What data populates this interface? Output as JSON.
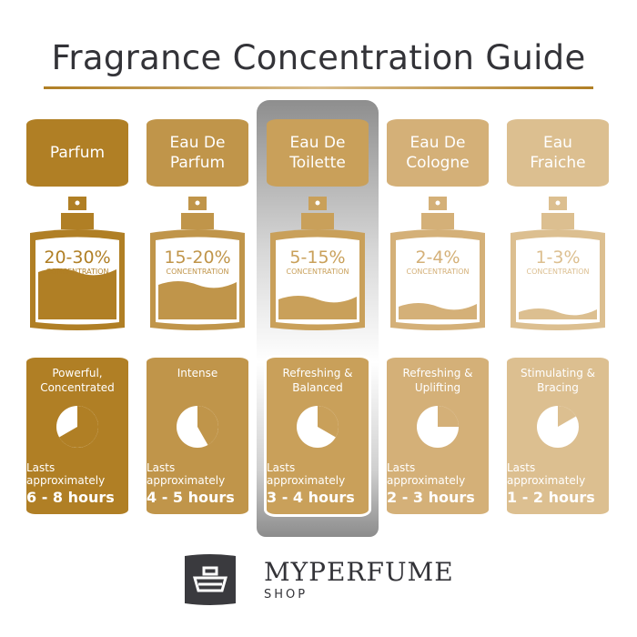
{
  "title": "Fragrance Concentration Guide",
  "concentration_label": "CONCENTRATION",
  "lasts_label": "Lasts approximately",
  "highlighted": "Eau De Toilette",
  "columns": [
    {
      "name_line1": "Parfum",
      "name_line2": "",
      "concentration": "20-30%",
      "fill_level": 0.25,
      "character": "Powerful, Concentrated",
      "duration": "6 - 8 hours",
      "clock_fraction": 0.667,
      "color": "#b07f25"
    },
    {
      "name_line1": "Eau De",
      "name_line2": "Parfum",
      "concentration": "15-20%",
      "fill_level": 0.18,
      "character": "Intense",
      "duration": "4 - 5 hours",
      "clock_fraction": 0.417,
      "color": "#c0954a"
    },
    {
      "name_line1": "Eau De",
      "name_line2": "Toilette",
      "concentration": "5-15%",
      "fill_level": 0.1,
      "character": "Refreshing & Balanced",
      "duration": "3 - 4 hours",
      "clock_fraction": 0.333,
      "color": "#c9a05a"
    },
    {
      "name_line1": "Eau De",
      "name_line2": "Cologne",
      "concentration": "2-4%",
      "fill_level": 0.06,
      "character": "Refreshing & Uplifting",
      "duration": "2 - 3 hours",
      "clock_fraction": 0.25,
      "color": "#d4b078"
    },
    {
      "name_line1": "Eau",
      "name_line2": "Fraiche",
      "concentration": "1-3%",
      "fill_level": 0.03,
      "character": "Stimulating & Bracing",
      "duration": "1 - 2 hours",
      "clock_fraction": 0.167,
      "color": "#dcbf90"
    }
  ],
  "brand": {
    "name": "MYPERFUME",
    "sub": "SHOP",
    "logo_color": "#3a3a3e"
  }
}
